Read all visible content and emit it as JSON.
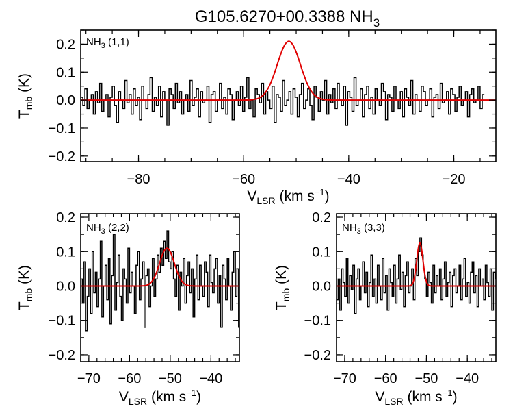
{
  "chart_data": {
    "type": "line",
    "title_main": "G105.6270+00.3388 NH",
    "title_sub": "3",
    "ylabel_main": "T",
    "ylabel_sub": "mb",
    "ylabel_unit": " (K)",
    "xlabel_main": "V",
    "xlabel_sub": "LSR",
    "xlabel_unit_pre": " (km s",
    "xlabel_sup": "−1",
    "xlabel_unit_post": ")",
    "colors": {
      "spectrum": "#000000",
      "fit": "#e00000"
    },
    "panels": [
      {
        "id": "nh3-11",
        "tag_main": "NH",
        "tag_sub": "3",
        "tag_rest": " (1,1)",
        "xlim": [
          -91,
          -12
        ],
        "ylim": [
          -0.22,
          0.25
        ],
        "xticks": [
          -80,
          -60,
          -40,
          -20
        ],
        "xticklabels": [
          "−80",
          "−60",
          "−40",
          "−20"
        ],
        "yticks": [
          -0.2,
          -0.1,
          0.0,
          0.1,
          0.2
        ],
        "yticklabels": [
          "−0.2",
          "−0.1",
          "0.0",
          "0.1",
          "0.2"
        ],
        "xminor": 5,
        "yminor": 0.05,
        "fit": {
          "center": -51.4,
          "amp": 0.21,
          "sigma": 2.2
        },
        "spectrum": {
          "x0": -91,
          "dx": 0.4,
          "y": [
            0.01,
            -0.02,
            0.04,
            -0.03,
            0.0,
            0.02,
            -0.05,
            0.03,
            -0.01,
            0.06,
            -0.04,
            0.0,
            0.02,
            -0.06,
            0.01,
            0.05,
            -0.02,
            -0.08,
            0.03,
            0.0,
            -0.03,
            0.07,
            -0.01,
            0.02,
            -0.05,
            0.04,
            -0.02,
            0.01,
            -0.07,
            0.05,
            0.0,
            -0.03,
            0.02,
            0.08,
            -0.04,
            0.01,
            -0.02,
            0.05,
            -0.06,
            0.03,
            0.0,
            -0.09,
            0.04,
            0.02,
            -0.03,
            0.06,
            -0.01,
            0.03,
            -0.05,
            0.0,
            0.02,
            -0.04,
            0.07,
            -0.02,
            0.01,
            0.04,
            -0.06,
            0.03,
            -0.01,
            0.0,
            0.05,
            -0.08,
            0.02,
            0.03,
            -0.04,
            0.0,
            0.06,
            -0.03,
            0.01,
            -0.05,
            0.04,
            0.02,
            -0.07,
            0.0,
            0.03,
            -0.02,
            0.05,
            -0.04,
            0.01,
            0.08,
            -0.03,
            0.0,
            -0.06,
            0.04,
            0.02,
            -0.01,
            0.06,
            -0.05,
            0.03,
            0.0,
            -0.03,
            0.05,
            -0.08,
            0.02,
            0.01,
            -0.04,
            0.07,
            -0.02,
            0.0,
            0.03,
            -0.05,
            0.04,
            0.01,
            -0.06,
            0.02,
            0.06,
            -0.03,
            0.0,
            0.04,
            -0.02,
            -0.07,
            0.05,
            0.01,
            -0.04,
            0.03,
            0.0,
            0.07,
            -0.05,
            0.02,
            -0.01,
            0.04,
            -0.03,
            0.06,
            0.0,
            -0.02,
            0.05,
            -0.09,
            0.03,
            0.01,
            -0.04,
            0.08,
            -0.02,
            0.0,
            0.04,
            -0.06,
            0.02,
            0.05,
            -0.03,
            0.01,
            -0.05,
            0.04,
            0.0,
            -0.02,
            0.06,
            0.03,
            -0.07,
            0.02,
            0.01,
            -0.04,
            0.05,
            0.0,
            -0.03,
            0.03,
            -0.06,
            0.04,
            0.01,
            -0.02,
            0.07,
            -0.05,
            0.02,
            0.0,
            -0.04,
            0.05,
            0.03,
            -0.02,
            0.0,
            0.04,
            -0.06,
            0.01,
            0.02,
            -0.03,
            0.06,
            -0.01,
            0.0,
            0.03,
            -0.05,
            0.04,
            0.02,
            -0.04,
            0.01,
            0.05,
            -0.02,
            0.0,
            0.03,
            -0.06,
            0.02,
            0.04,
            -0.01,
            0.0,
            0.05,
            -0.03,
            0.02
          ]
        }
      },
      {
        "id": "nh3-22",
        "tag_main": "NH",
        "tag_sub": "3",
        "tag_rest": " (2,2)",
        "xlim": [
          -72,
          -33
        ],
        "ylim": [
          -0.22,
          0.21
        ],
        "xticks": [
          -70,
          -60,
          -50,
          -40
        ],
        "xticklabels": [
          "−70",
          "−60",
          "−50",
          "−40"
        ],
        "yticks": [
          -0.2,
          -0.1,
          0.0,
          0.1,
          0.2
        ],
        "yticklabels": [
          "−0.2",
          "−0.1",
          "0.0",
          "0.1",
          "0.2"
        ],
        "xminor": 2,
        "yminor": 0.05,
        "fit": {
          "center": -50.8,
          "amp": 0.11,
          "sigma": 1.8
        },
        "spectrum": {
          "x0": -72,
          "dx": 0.4,
          "y": [
            0.02,
            -0.05,
            0.07,
            -0.13,
            -0.03,
            0.05,
            -0.08,
            0.1,
            -0.02,
            0.04,
            -0.06,
            0.02,
            0.13,
            -0.09,
            0.0,
            0.06,
            -0.04,
            0.08,
            -0.11,
            0.03,
            0.15,
            -0.07,
            0.01,
            0.09,
            -0.03,
            -0.1,
            0.05,
            0.02,
            -0.05,
            0.11,
            -0.02,
            0.04,
            0.0,
            -0.08,
            0.06,
            0.1,
            -0.04,
            0.02,
            0.07,
            -0.12,
            0.03,
            0.05,
            -0.06,
            0.0,
            0.08,
            -0.03,
            0.02,
            0.09,
            0.04,
            0.11,
            0.06,
            0.13,
            0.08,
            0.16,
            0.07,
            0.05,
            0.1,
            0.02,
            -0.03,
            0.06,
            -0.07,
            0.04,
            0.0,
            0.08,
            -0.05,
            0.03,
            0.07,
            -0.02,
            0.05,
            -0.09,
            0.02,
            0.09,
            -0.04,
            0.06,
            0.0,
            -0.03,
            0.07,
            0.04,
            -0.06,
            0.09,
            0.01,
            -0.02,
            0.05,
            0.08,
            -0.05,
            0.03,
            -0.12,
            0.06,
            0.02,
            -0.04,
            0.08,
            0.0,
            -0.07,
            0.04,
            0.1,
            -0.03,
            0.05,
            -0.12,
            0.07,
            0.02
          ]
        }
      },
      {
        "id": "nh3-33",
        "tag_main": "NH",
        "tag_sub": "3",
        "tag_rest": " (3,3)",
        "xlim": [
          -72,
          -33
        ],
        "ylim": [
          -0.22,
          0.21
        ],
        "xticks": [
          -70,
          -60,
          -50,
          -40
        ],
        "xticklabels": [
          "−70",
          "−60",
          "−50",
          "−40"
        ],
        "yticks": [
          -0.2,
          -0.1,
          0.0,
          0.1,
          0.2
        ],
        "yticklabels": [
          "−0.2",
          "−0.1",
          "0.0",
          "0.1",
          "0.2"
        ],
        "xminor": 2,
        "yminor": 0.05,
        "fit": {
          "center": -51.6,
          "amp": 0.125,
          "sigma": 0.75
        },
        "spectrum": {
          "x0": -72,
          "dx": 0.4,
          "y": [
            -0.04,
            0.02,
            -0.07,
            0.05,
            0.01,
            -0.03,
            0.08,
            -0.05,
            0.03,
            -0.01,
            0.06,
            -0.08,
            0.02,
            0.05,
            -0.04,
            0.0,
            0.07,
            -0.02,
            0.04,
            -0.06,
            0.01,
            0.09,
            -0.03,
            0.02,
            -0.05,
            0.06,
            0.0,
            -0.04,
            0.08,
            -0.02,
            0.03,
            -0.07,
            0.05,
            0.01,
            -0.03,
            0.06,
            -0.05,
            0.02,
            0.09,
            -0.01,
            0.04,
            -0.06,
            0.03,
            0.07,
            -0.02,
            0.0,
            0.05,
            -0.04,
            0.08,
            0.03,
            0.1,
            0.14,
            0.09,
            0.05,
            0.02,
            -0.03,
            0.04,
            0.01,
            -0.05,
            0.06,
            -0.02,
            0.03,
            0.0,
            0.05,
            -0.04,
            0.02,
            0.07,
            -0.03,
            0.01,
            0.04,
            -0.06,
            0.03,
            0.05,
            -0.02,
            0.0,
            0.06,
            -0.04,
            0.02,
            0.08,
            -0.03,
            0.01,
            -0.05,
            0.04,
            0.07,
            -0.02,
            0.03,
            -0.06,
            0.05,
            0.0,
            0.02,
            -0.04,
            0.06,
            0.01,
            -0.03,
            0.05,
            -0.07,
            0.04,
            0.02
          ]
        }
      }
    ]
  }
}
